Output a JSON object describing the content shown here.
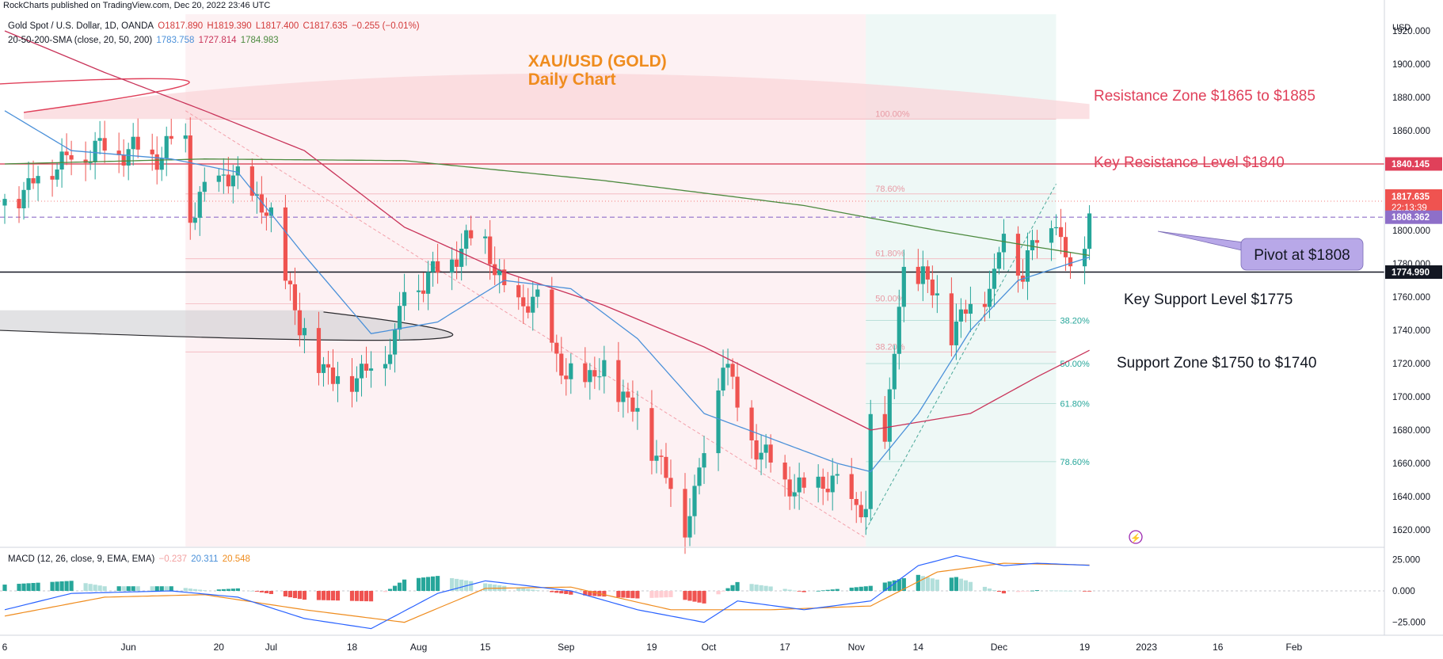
{
  "header": {
    "published": "RockCharts published on TradingView.com, Dec 20, 2022 23:46 UTC"
  },
  "legend": {
    "symbol": "Gold Spot / U.S. Dollar, 1D, OANDA",
    "open": "O1817.890",
    "high": "H1819.390",
    "low": "L1817.400",
    "close": "C1817.635",
    "change": "−0.255 (−0.01%)",
    "sma_label": "20-50-200-SMA (close, 20, 50, 200)",
    "sma20": "1783.758",
    "sma50": "1727.814",
    "sma200": "1784.983",
    "macd_label": "MACD (12, 26, close, 9, EMA, EMA)",
    "macd_hist": "−0.237",
    "macd_line": "20.311",
    "macd_signal": "20.548"
  },
  "colors": {
    "up": "#26a69a",
    "down": "#ef5350",
    "sma20": "#4a90d9",
    "sma50": "#c9345a",
    "sma200": "#4c8a3f",
    "resistance": "#e0405a",
    "macd_signal": "#ef8c1e",
    "pivot_box": "#b8a8e8",
    "title": "#ef8c1e"
  },
  "chart_data": {
    "type": "candlestick",
    "title": "XAU/USD (GOLD)",
    "subtitle": "Daily Chart",
    "currency": "USD",
    "ylim": [
      1610,
      1930
    ],
    "y_ticks": [
      "1620.000",
      "1640.000",
      "1660.000",
      "1680.000",
      "1700.000",
      "1720.000",
      "1740.000",
      "1760.000",
      "1780.000",
      "1800.000",
      "1820.000",
      "1840.000",
      "1860.000",
      "1880.000",
      "1900.000",
      "1920.000"
    ],
    "x_ticks": [
      "6",
      "Jun",
      "20",
      "Jul",
      "18",
      "Aug",
      "15",
      "Sep",
      "19",
      "Oct",
      "17",
      "Nov",
      "14",
      "Dec",
      "19",
      "2023",
      "16",
      "Feb"
    ],
    "price_path_anchors": [
      [
        "May 06",
        1815
      ],
      [
        "May 16",
        1840
      ],
      [
        "May 25",
        1850
      ],
      [
        "Jun 02",
        1848
      ],
      [
        "Jun 07",
        1845
      ],
      [
        "Jun 13",
        1855
      ],
      [
        "Jun 14",
        1810
      ],
      [
        "Jun 21",
        1835
      ],
      [
        "Jun 28",
        1820
      ],
      [
        "Jul 01",
        1805
      ],
      [
        "Jul 05",
        1765
      ],
      [
        "Jul 07",
        1740
      ],
      [
        "Jul 14",
        1710
      ],
      [
        "Jul 21",
        1715
      ],
      [
        "Jul 27",
        1735
      ],
      [
        "Jul 29",
        1765
      ],
      [
        "Aug 05",
        1775
      ],
      [
        "Aug 10",
        1790
      ],
      [
        "Aug 15",
        1795
      ],
      [
        "Aug 19",
        1760
      ],
      [
        "Aug 26",
        1755
      ],
      [
        "Sep 01",
        1710
      ],
      [
        "Sep 09",
        1715
      ],
      [
        "Sep 16",
        1690
      ],
      [
        "Sep 20",
        1665
      ],
      [
        "Sep 26",
        1625
      ],
      [
        "Sep 28",
        1640
      ],
      [
        "Oct 04",
        1725
      ],
      [
        "Oct 07",
        1695
      ],
      [
        "Oct 12",
        1665
      ],
      [
        "Oct 17",
        1650
      ],
      [
        "Oct 21",
        1640
      ],
      [
        "Oct 24",
        1650
      ],
      [
        "Oct 28",
        1645
      ],
      [
        "Nov 03",
        1630
      ],
      [
        "Nov 04",
        1680
      ],
      [
        "Nov 07",
        1675
      ],
      [
        "Nov 10",
        1755
      ],
      [
        "Nov 11",
        1770
      ],
      [
        "Nov 15",
        1775
      ],
      [
        "Nov 21",
        1740
      ],
      [
        "Nov 25",
        1755
      ],
      [
        "Nov 30",
        1770
      ],
      [
        "Dec 02",
        1800
      ],
      [
        "Dec 06",
        1775
      ],
      [
        "Dec 09",
        1795
      ],
      [
        "Dec 13",
        1810
      ],
      [
        "Dec 15",
        1775
      ],
      [
        "Dec 19",
        1790
      ],
      [
        "Dec 20",
        1818
      ]
    ],
    "sma20_anchors": [
      [
        "May 06",
        1872
      ],
      [
        "May 20",
        1848
      ],
      [
        "Jun 10",
        1843
      ],
      [
        "Jun 24",
        1835
      ],
      [
        "Jul 08",
        1785
      ],
      [
        "Jul 22",
        1738
      ],
      [
        "Aug 05",
        1745
      ],
      [
        "Aug 19",
        1770
      ],
      [
        "Sep 02",
        1765
      ],
      [
        "Sep 16",
        1735
      ],
      [
        "Sep 30",
        1690
      ],
      [
        "Oct 14",
        1675
      ],
      [
        "Oct 28",
        1660
      ],
      [
        "Nov 04",
        1655
      ],
      [
        "Nov 14",
        1690
      ],
      [
        "Nov 25",
        1740
      ],
      [
        "Dec 05",
        1770
      ],
      [
        "Dec 20",
        1784
      ]
    ],
    "sma50_anchors": [
      [
        "May 06",
        1920
      ],
      [
        "May 27",
        1895
      ],
      [
        "Jun 17",
        1872
      ],
      [
        "Jul 08",
        1848
      ],
      [
        "Jul 29",
        1802
      ],
      [
        "Aug 19",
        1775
      ],
      [
        "Sep 09",
        1755
      ],
      [
        "Sep 30",
        1730
      ],
      [
        "Oct 21",
        1700
      ],
      [
        "Nov 04",
        1680
      ],
      [
        "Nov 25",
        1690
      ],
      [
        "Dec 09",
        1712
      ],
      [
        "Dec 20",
        1728
      ]
    ],
    "sma200_anchors": [
      [
        "May 06",
        1840
      ],
      [
        "Jun 17",
        1843
      ],
      [
        "Jul 29",
        1842
      ],
      [
        "Sep 09",
        1830
      ],
      [
        "Oct 21",
        1815
      ],
      [
        "Nov 18",
        1800
      ],
      [
        "Dec 09",
        1790
      ],
      [
        "Dec 20",
        1785
      ]
    ],
    "levels": {
      "key_resistance": {
        "price": 1840,
        "label": "Key Resistance Level $1840",
        "tag": "1840.145"
      },
      "key_support": {
        "price": 1775,
        "label": "Key Support Level $1775",
        "tag": "1774.990"
      },
      "pivot": {
        "price": 1808,
        "label": "Pivot at $1808",
        "tag": "1808.362"
      },
      "last_price": {
        "price": 1817.635,
        "tag": "1817.635",
        "countdown": "22:13:39"
      },
      "resistance_zone": {
        "label": "Resistance Zone $1865 to $1885"
      },
      "support_zone": {
        "label": "Support Zone $1750 to $1740"
      }
    },
    "fib_upper": [
      {
        "label": "100.00%",
        "price": 1867
      },
      {
        "label": "78.60%",
        "price": 1822
      },
      {
        "label": "61.80%",
        "price": 1783
      },
      {
        "label": "50.00%",
        "price": 1756
      },
      {
        "label": "38.20%",
        "price": 1727
      }
    ],
    "fib_lower": [
      {
        "label": "38.20%",
        "price": 1746
      },
      {
        "label": "50.00%",
        "price": 1720
      },
      {
        "label": "61.80%",
        "price": 1696
      },
      {
        "label": "78.60%",
        "price": 1661
      }
    ],
    "macd": {
      "ylim": [
        -34,
        34
      ],
      "ticks": [
        "25.000",
        "0.000",
        "−25.000"
      ],
      "line_anchors": [
        [
          "May 06",
          -15
        ],
        [
          "May 20",
          -2
        ],
        [
          "Jun 10",
          0
        ],
        [
          "Jun 24",
          -5
        ],
        [
          "Jul 08",
          -22
        ],
        [
          "Jul 22",
          -30
        ],
        [
          "Aug 05",
          -2
        ],
        [
          "Aug 15",
          8
        ],
        [
          "Sep 02",
          0
        ],
        [
          "Sep 16",
          -15
        ],
        [
          "Sep 30",
          -25
        ],
        [
          "Oct 07",
          -8
        ],
        [
          "Oct 21",
          -15
        ],
        [
          "Nov 04",
          -8
        ],
        [
          "Nov 14",
          20
        ],
        [
          "Nov 22",
          28
        ],
        [
          "Dec 02",
          20
        ],
        [
          "Dec 09",
          22
        ],
        [
          "Dec 20",
          20.3
        ]
      ],
      "signal_anchors": [
        [
          "May 06",
          -20
        ],
        [
          "May 27",
          -5
        ],
        [
          "Jun 17",
          -3
        ],
        [
          "Jul 08",
          -15
        ],
        [
          "Jul 29",
          -25
        ],
        [
          "Aug 15",
          2
        ],
        [
          "Sep 02",
          3
        ],
        [
          "Sep 23",
          -15
        ],
        [
          "Oct 14",
          -15
        ],
        [
          "Nov 04",
          -12
        ],
        [
          "Nov 18",
          15
        ],
        [
          "Dec 02",
          22
        ],
        [
          "Dec 20",
          20.5
        ]
      ]
    }
  }
}
